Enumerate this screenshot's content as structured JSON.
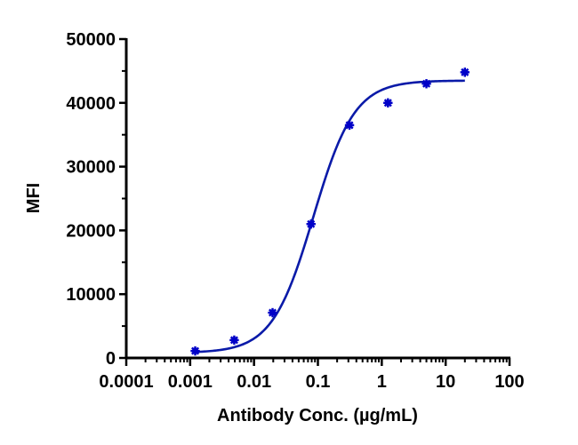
{
  "chart_data": {
    "type": "scatter",
    "title": "",
    "xlabel": "Antibody Conc. (µg/mL)",
    "ylabel": "MFI",
    "xscale": "log",
    "xlim": [
      0.0001,
      100
    ],
    "ylim": [
      0,
      50000
    ],
    "x_tick_labels": [
      "0.0001",
      "0.001",
      "0.01",
      "0.1",
      "1",
      "10",
      "100"
    ],
    "x_ticks": [
      0.0001,
      0.001,
      0.01,
      0.1,
      1,
      10,
      100
    ],
    "y_tick_labels": [
      "0",
      "10000",
      "20000",
      "30000",
      "40000",
      "50000"
    ],
    "y_ticks": [
      0,
      10000,
      20000,
      30000,
      40000,
      50000
    ],
    "grid": false,
    "legend": null,
    "series": [
      {
        "name": "MFI",
        "color": "#0000c8",
        "marker": "asterisk",
        "x": [
          0.0012,
          0.0049,
          0.0195,
          0.078,
          0.3125,
          1.25,
          5,
          20
        ],
        "y": [
          1100,
          2800,
          7100,
          21000,
          36500,
          40000,
          43000,
          44800
        ]
      }
    ],
    "fit": {
      "type": "4PL",
      "color": "#0a1aa8",
      "bottom": 800,
      "top": 43500,
      "ec50": 0.085,
      "hill": 1.35,
      "x_range": [
        0.0012,
        20
      ]
    }
  }
}
